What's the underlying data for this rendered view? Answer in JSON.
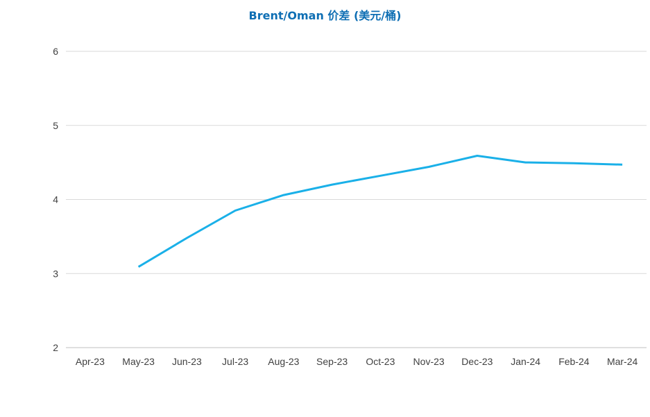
{
  "chart_data": {
    "type": "line",
    "title": "Brent/Oman 价差 (美元/桶)",
    "xlabel": "",
    "ylabel": "",
    "categories": [
      "Apr-23",
      "May-23",
      "Jun-23",
      "Jul-23",
      "Aug-23",
      "Sep-23",
      "Oct-23",
      "Nov-23",
      "Dec-23",
      "Jan-24",
      "Feb-24",
      "Mar-24"
    ],
    "ylim": [
      2,
      6
    ],
    "yticks": [
      2,
      3,
      4,
      5,
      6
    ],
    "grid": true,
    "legend": "none",
    "series": [
      {
        "color": "#1ab0e8",
        "values": [
          null,
          3.09,
          3.48,
          3.85,
          4.06,
          4.2,
          4.32,
          4.44,
          4.59,
          4.5,
          4.49,
          4.47
        ]
      }
    ]
  },
  "colors": {
    "title": "#0f6fb4",
    "gridline": "#d9d9d9",
    "axis": "#bfbfbf",
    "tick_text": "#404040"
  }
}
